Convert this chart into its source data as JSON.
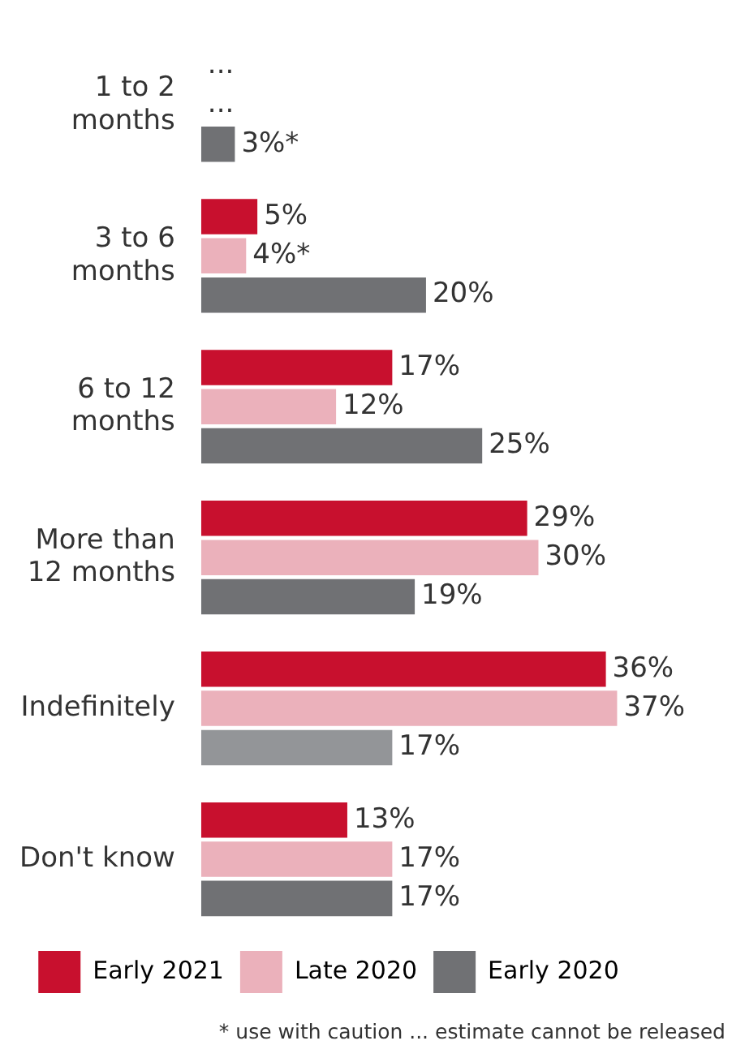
{
  "chart_data": {
    "type": "bar",
    "orientation": "horizontal",
    "categories": [
      "1 to 2 months",
      "3 to 6 months",
      "6 to 12 months",
      "More than 12 months",
      "Indefinitely",
      "Don't know"
    ],
    "series": [
      {
        "name": "Early 2021",
        "color": "#c8102e",
        "values": [
          null,
          5,
          17,
          29,
          36,
          13
        ],
        "value_labels": [
          "...",
          "5%",
          "17%",
          "29%",
          "36%",
          "13%"
        ]
      },
      {
        "name": "Late 2020",
        "color": "#ebb1bb",
        "values": [
          null,
          4,
          12,
          30,
          37,
          17
        ],
        "value_labels": [
          "...",
          "4%*",
          "12%",
          "30%",
          "37%",
          "17%"
        ]
      },
      {
        "name": "Early 2020",
        "color": "#707174",
        "colors": [
          "#707174",
          "#707174",
          "#707174",
          "#707174",
          "#939598",
          "#707174"
        ],
        "values": [
          3,
          20,
          25,
          19,
          17,
          17
        ],
        "value_labels": [
          "3%*",
          "20%",
          "25%",
          "19%",
          "17%",
          "17%"
        ]
      }
    ],
    "tick_labels": "y",
    "legend": "bottom",
    "annotations": [
      "* use with caution  ... estimate cannot be released"
    ]
  }
}
